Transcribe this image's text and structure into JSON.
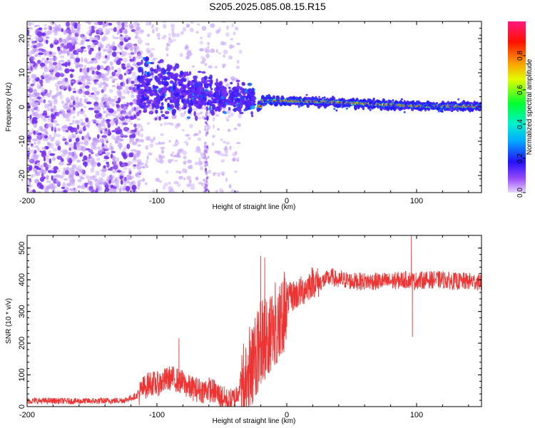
{
  "title": "S205.2025.085.08.15.R15",
  "chart_data": [
    {
      "type": "heatmap",
      "name": "spectrogram",
      "xlabel": "Height of straight line (km)",
      "ylabel": "Frequency (Hz)",
      "xlim": [
        -200,
        150
      ],
      "ylim": [
        -25,
        25
      ],
      "xticks": [
        "-200",
        "-100",
        "0",
        "100"
      ],
      "xtick_values": [
        -200,
        -100,
        0,
        100
      ],
      "yticks": [
        "20",
        "10",
        "0",
        "-10",
        "-20"
      ],
      "ytick_values": [
        20,
        10,
        0,
        -10,
        -20
      ],
      "colorbar": {
        "label": "Normalized spectral amplitude",
        "range": [
          0,
          1
        ],
        "ticks": [
          "0.0",
          "0.2",
          "0.4",
          "0.6",
          "0.8"
        ],
        "tick_values": [
          0,
          0.2,
          0.4,
          0.6,
          0.8
        ],
        "colormap": [
          "#e8d8ff",
          "#7b2ff0",
          "#1a14ff",
          "#00e5ff",
          "#00ff33",
          "#ffff00",
          "#ff8800",
          "#ff0000",
          "#ff1a7a"
        ]
      },
      "ridge": {
        "description_points_x": [
          -20,
          0,
          20,
          40,
          60,
          80,
          100,
          150
        ],
        "frequency_hz": [
          1.8,
          1.8,
          1.6,
          1.3,
          1.0,
          0.6,
          0.3,
          0.2
        ]
      }
    },
    {
      "type": "line",
      "name": "snr",
      "xlabel": "Height of straight line (km)",
      "ylabel": "SNR (10 * v/v)",
      "xlim": [
        -200,
        150
      ],
      "ylim": [
        0,
        540
      ],
      "xticks": [
        "-200",
        "-100",
        "0",
        "100"
      ],
      "xtick_values": [
        -200,
        -100,
        0,
        100
      ],
      "yticks": [
        "0",
        "100",
        "200",
        "300",
        "400",
        "500"
      ],
      "ytick_values": [
        0,
        100,
        200,
        300,
        400,
        500
      ],
      "color": "#ee3333",
      "series": [
        {
          "name": "SNR",
          "x": [
            -200,
            -180,
            -160,
            -140,
            -125,
            -115,
            -110,
            -105,
            -100,
            -95,
            -90,
            -85,
            -80,
            -75,
            -70,
            -65,
            -60,
            -55,
            -50,
            -45,
            -40,
            -35,
            -30,
            -25,
            -20,
            -15,
            -10,
            -5,
            0,
            5,
            10,
            15,
            20,
            25,
            30,
            35,
            40,
            45,
            50,
            60,
            70,
            80,
            90,
            96,
            98,
            100,
            110,
            120,
            130,
            140,
            150
          ],
          "y": [
            18,
            18,
            17,
            18,
            20,
            35,
            60,
            75,
            70,
            80,
            90,
            85,
            75,
            60,
            55,
            50,
            55,
            45,
            30,
            15,
            25,
            80,
            150,
            170,
            230,
            250,
            280,
            310,
            335,
            350,
            360,
            375,
            395,
            390,
            400,
            410,
            395,
            400,
            395,
            395,
            395,
            395,
            400,
            400,
            395,
            398,
            400,
            400,
            395,
            395,
            393
          ],
          "spikes": [
            {
              "x": -83,
              "y": 215
            },
            {
              "x": -20,
              "y": 475
            },
            {
              "x": -17,
              "y": 470
            },
            {
              "x": 42,
              "y": 430
            },
            {
              "x": 96,
              "y": 540
            },
            {
              "x": 96.8,
              "y": 220
            }
          ]
        }
      ]
    }
  ]
}
